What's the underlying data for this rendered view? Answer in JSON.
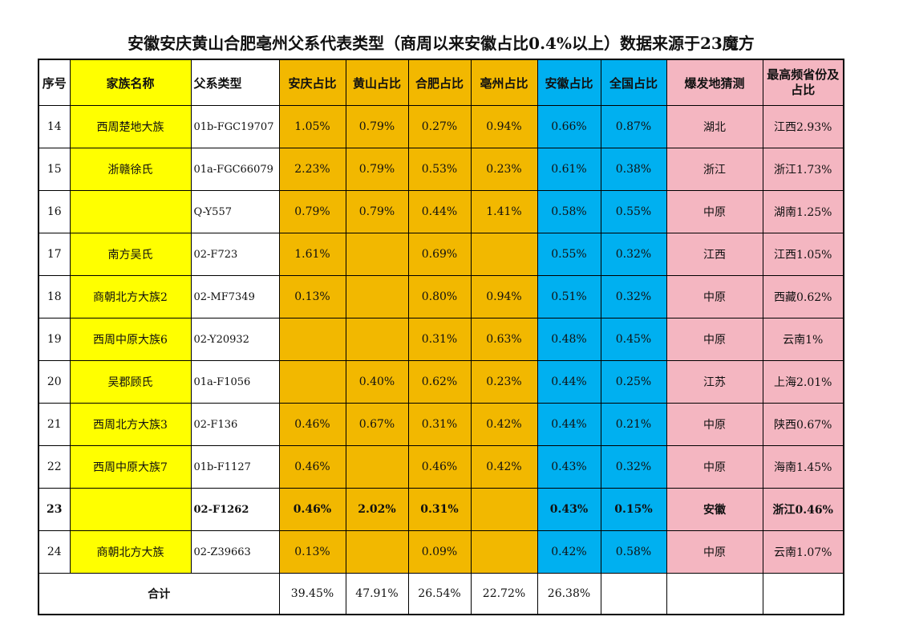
{
  "title": "安徽安庆黄山合肥亳州父系代表类型（商周以来安徽占比0.4%以上）数据来源于23魔方",
  "headers": [
    "序号",
    "家族名称",
    "父系类型",
    "安庆占比",
    "黄山占比",
    "合肥占比",
    "亳州占比",
    "安徽占比",
    "全国占比",
    "爆发地猜测",
    "最高频省份及占比"
  ],
  "rows": [
    [
      "14",
      "西周楚地大族",
      "01b-FGC19707",
      "1.05%",
      "0.79%",
      "0.27%",
      "0.94%",
      "0.66%",
      "0.87%",
      "湖北",
      "江西2.93%"
    ],
    [
      "15",
      "浙赣徐氏",
      "01a-FGC66079",
      "2.23%",
      "0.79%",
      "0.53%",
      "0.23%",
      "0.61%",
      "0.38%",
      "浙江",
      "浙江1.73%"
    ],
    [
      "16",
      "",
      "Q-Y557",
      "0.79%",
      "0.79%",
      "0.44%",
      "1.41%",
      "0.58%",
      "0.55%",
      "中原",
      "湖南1.25%"
    ],
    [
      "17",
      "南方吴氏",
      "02-F723",
      "1.61%",
      "",
      "0.69%",
      "",
      "0.55%",
      "0.32%",
      "江西",
      "江西1.05%"
    ],
    [
      "18",
      "商朝北方大族2",
      "02-MF7349",
      "0.13%",
      "",
      "0.80%",
      "0.94%",
      "0.51%",
      "0.32%",
      "中原",
      "西藏0.62%"
    ],
    [
      "19",
      "西周中原大族6",
      "02-Y20932",
      "",
      "",
      "0.31%",
      "0.63%",
      "0.48%",
      "0.45%",
      "中原",
      "云南1%"
    ],
    [
      "20",
      "吴郡顾氏",
      "01a-F1056",
      "",
      "0.40%",
      "0.62%",
      "0.23%",
      "0.44%",
      "0.25%",
      "江苏",
      "上海2.01%"
    ],
    [
      "21",
      "西周北方大族3",
      "02-F136",
      "0.46%",
      "0.67%",
      "0.31%",
      "0.42%",
      "0.44%",
      "0.21%",
      "中原",
      "陕西0.67%"
    ],
    [
      "22",
      "西周中原大族7",
      "01b-F1127",
      "0.46%",
      "",
      "0.46%",
      "0.42%",
      "0.43%",
      "0.32%",
      "中原",
      "海南1.45%"
    ],
    [
      "23",
      "",
      "02-F1262",
      "0.46%",
      "2.02%",
      "0.31%",
      "",
      "0.43%",
      "0.15%",
      "安徽",
      "浙江0.46%"
    ],
    [
      "24",
      "商朝北方大族",
      "02-Z39663",
      "0.13%",
      "",
      "0.09%",
      "",
      "0.42%",
      "0.58%",
      "中原",
      "云南1.07%"
    ]
  ],
  "total": {
    "label": "合计",
    "values": [
      "39.45%",
      "47.91%",
      "26.54%",
      "22.72%",
      "26.38%",
      "",
      "",
      ""
    ]
  },
  "colors": {
    "family_name": "#ffff00",
    "city_share": "#f2b800",
    "anhui_national": "#00b0f0",
    "origin_province": "#f4b6c1"
  }
}
